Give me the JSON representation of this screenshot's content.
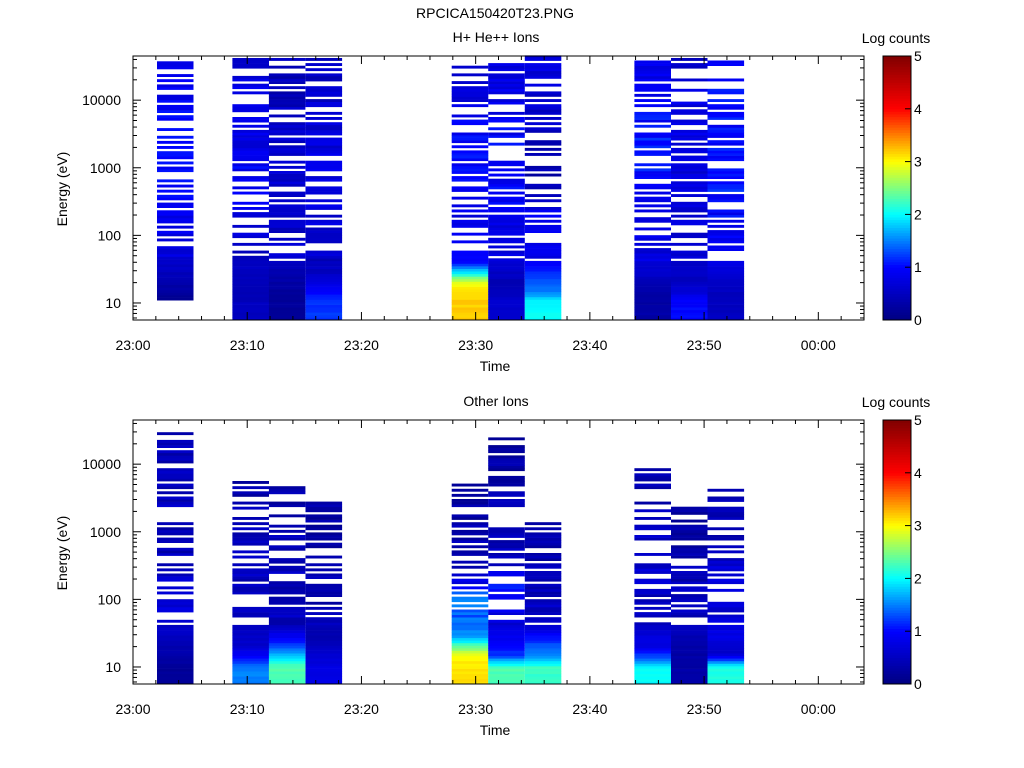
{
  "figure_title": "RPCICA150420T23.PNG",
  "colors": {
    "background": "#ffffff",
    "axis": "#000000",
    "colormap": [
      "#000080",
      "#0000ff",
      "#00ffff",
      "#ffff00",
      "#ff0000",
      "#800000"
    ]
  },
  "chart_data": [
    {
      "type": "heatmap",
      "title": "H+ He++ Ions",
      "xlabel": "Time",
      "ylabel": "Energy (eV)",
      "x_ticks": [
        "23:00",
        "23:10",
        "23:20",
        "23:30",
        "23:40",
        "23:50",
        "00:00"
      ],
      "x_range_minutes": [
        0,
        64
      ],
      "y_scale": "log",
      "y_ticks": [
        10,
        100,
        1000,
        10000
      ],
      "y_tick_labels": [
        "10",
        "100",
        "1000",
        "10000"
      ],
      "y_range": [
        5.6,
        45000
      ],
      "colorbar": {
        "label": "Log counts",
        "range": [
          0,
          5
        ],
        "ticks": [
          "0",
          "1",
          "2",
          "3",
          "4",
          "5"
        ]
      },
      "columns": [
        {
          "t_start": 2.1,
          "t_end": 5.3,
          "e_min": 11,
          "e_max": 42000,
          "bins": [
            [
              10,
              0.2
            ],
            [
              13,
              0.2
            ],
            [
              30,
              0.5
            ],
            [
              60,
              0.7
            ],
            [
              120,
              0.8
            ],
            [
              300,
              0.9
            ],
            [
              800,
              1.0
            ],
            [
              2000,
              0.9
            ],
            [
              5000,
              1.0
            ],
            [
              12000,
              0.9
            ],
            [
              30000,
              0.8
            ]
          ]
        },
        {
          "t_start": 8.7,
          "t_end": 11.9,
          "e_min": 5.6,
          "e_max": 42000,
          "bins": [
            [
              7,
              0.5
            ],
            [
              10,
              0.5
            ],
            [
              14,
              0.4
            ],
            [
              50,
              0.6
            ],
            [
              100,
              0.7
            ],
            [
              300,
              0.8
            ],
            [
              900,
              0.9
            ],
            [
              2500,
              0.8
            ],
            [
              8000,
              0.9
            ],
            [
              20000,
              0.8
            ],
            [
              35000,
              0.6
            ]
          ]
        },
        {
          "t_start": 11.9,
          "t_end": 15.1,
          "e_min": 5.6,
          "e_max": 42000,
          "bins": [
            [
              7,
              0.2
            ],
            [
              10,
              0.2
            ],
            [
              14,
              0.2
            ],
            [
              30,
              0.4
            ],
            [
              60,
              0.6
            ],
            [
              150,
              0.5
            ],
            [
              400,
              0.6
            ],
            [
              1200,
              0.7
            ],
            [
              3500,
              0.6
            ],
            [
              10000,
              0.5
            ],
            [
              30000,
              0.4
            ]
          ]
        },
        {
          "t_start": 15.1,
          "t_end": 18.3,
          "e_min": 5.6,
          "e_max": 42000,
          "bins": [
            [
              7,
              1.2
            ],
            [
              10,
              1.2
            ],
            [
              30,
              0.5
            ],
            [
              80,
              0.6
            ],
            [
              250,
              0.7
            ],
            [
              800,
              0.8
            ],
            [
              2500,
              0.7
            ],
            [
              8000,
              0.6
            ],
            [
              25000,
              0.5
            ]
          ]
        },
        {
          "t_start": 27.9,
          "t_end": 31.1,
          "e_min": 5.6,
          "e_max": 30000,
          "bins": [
            [
              7,
              3.2
            ],
            [
              10,
              3.2
            ],
            [
              15,
              3.1
            ],
            [
              20,
              2.9
            ],
            [
              25,
              2.3
            ],
            [
              40,
              1.0
            ],
            [
              70,
              0.9
            ],
            [
              150,
              0.8
            ],
            [
              500,
              0.9
            ],
            [
              1500,
              1.0
            ],
            [
              5000,
              0.9
            ],
            [
              20000,
              0.7
            ]
          ]
        },
        {
          "t_start": 31.1,
          "t_end": 34.3,
          "e_min": 5.6,
          "e_max": 42000,
          "bins": [
            [
              7,
              0.6
            ],
            [
              10,
              0.6
            ],
            [
              20,
              0.4
            ],
            [
              40,
              0.7
            ],
            [
              120,
              0.8
            ],
            [
              400,
              0.9
            ],
            [
              1200,
              1.0
            ],
            [
              4000,
              0.9
            ],
            [
              12000,
              0.8
            ],
            [
              35000,
              0.7
            ]
          ]
        },
        {
          "t_start": 34.3,
          "t_end": 37.5,
          "e_min": 5.6,
          "e_max": 45000,
          "bins": [
            [
              7,
              2.0
            ],
            [
              10,
              2.0
            ],
            [
              15,
              1.5
            ],
            [
              22,
              1.3
            ],
            [
              30,
              1.1
            ],
            [
              60,
              0.8
            ],
            [
              200,
              0.9
            ],
            [
              700,
              0.3
            ],
            [
              2000,
              0.5
            ],
            [
              6000,
              0.6
            ],
            [
              20000,
              0.7
            ],
            [
              40000,
              0.8
            ]
          ]
        },
        {
          "t_start": 43.9,
          "t_end": 47.1,
          "e_min": 5.6,
          "e_max": 42000,
          "bins": [
            [
              7,
              0.3
            ],
            [
              10,
              0.3
            ],
            [
              14,
              0.3
            ],
            [
              30,
              0.6
            ],
            [
              70,
              0.8
            ],
            [
              200,
              0.9
            ],
            [
              600,
              1.0
            ],
            [
              1800,
              1.1
            ],
            [
              5000,
              1.0
            ],
            [
              15000,
              0.9
            ],
            [
              35000,
              0.8
            ]
          ]
        },
        {
          "t_start": 47.1,
          "t_end": 50.3,
          "e_min": 5.6,
          "e_max": 42000,
          "bins": [
            [
              7,
              1.0
            ],
            [
              10,
              1.0
            ],
            [
              20,
              0.5
            ],
            [
              50,
              0.6
            ],
            [
              150,
              0.7
            ],
            [
              500,
              0.8
            ],
            [
              1500,
              0.7
            ],
            [
              5000,
              0.8
            ],
            [
              15000,
              0.7
            ],
            [
              35000,
              0.6
            ]
          ]
        },
        {
          "t_start": 50.3,
          "t_end": 53.5,
          "e_min": 5.6,
          "e_max": 42000,
          "bins": [
            [
              7,
              0.5
            ],
            [
              10,
              0.5
            ],
            [
              16,
              0.5
            ],
            [
              22,
              0.6
            ],
            [
              30,
              0.7
            ],
            [
              80,
              0.9
            ],
            [
              250,
              1.0
            ],
            [
              800,
              1.1
            ],
            [
              2500,
              1.0
            ],
            [
              8000,
              1.0
            ],
            [
              25000,
              0.9
            ]
          ]
        }
      ]
    },
    {
      "type": "heatmap",
      "title": "Other Ions",
      "xlabel": "Time",
      "ylabel": "Energy (eV)",
      "x_ticks": [
        "23:00",
        "23:10",
        "23:20",
        "23:30",
        "23:40",
        "23:50",
        "00:00"
      ],
      "x_range_minutes": [
        0,
        64
      ],
      "y_scale": "log",
      "y_ticks": [
        10,
        100,
        1000,
        10000
      ],
      "y_tick_labels": [
        "10",
        "100",
        "1000",
        "10000"
      ],
      "y_range": [
        5.6,
        45000
      ],
      "colorbar": {
        "label": "Log counts",
        "range": [
          0,
          5
        ],
        "ticks": [
          "0",
          "1",
          "2",
          "3",
          "4",
          "5"
        ]
      },
      "columns": [
        {
          "t_start": 2.1,
          "t_end": 5.3,
          "e_min": 5.6,
          "e_max": 35000,
          "bins": [
            [
              7,
              0.2
            ],
            [
              10,
              0.2
            ],
            [
              15,
              0.3
            ],
            [
              30,
              0.5
            ],
            [
              60,
              0.6
            ],
            [
              120,
              0.7
            ],
            [
              300,
              0.5
            ],
            [
              800,
              0.4
            ],
            [
              2500,
              0.5
            ],
            [
              6000,
              0.4
            ],
            [
              33000,
              0.5
            ]
          ]
        },
        {
          "t_start": 8.7,
          "t_end": 11.9,
          "e_min": 5.6,
          "e_max": 5500,
          "bins": [
            [
              7,
              1.5
            ],
            [
              10,
              1.5
            ],
            [
              14,
              1.0
            ],
            [
              20,
              0.6
            ],
            [
              40,
              0.5
            ],
            [
              100,
              0.4
            ],
            [
              300,
              0.5
            ],
            [
              900,
              0.4
            ],
            [
              2000,
              0.4
            ],
            [
              5000,
              0.3
            ]
          ]
        },
        {
          "t_start": 11.9,
          "t_end": 15.1,
          "e_min": 5.6,
          "e_max": 4500,
          "bins": [
            [
              7,
              2.3
            ],
            [
              10,
              2.3
            ],
            [
              15,
              1.8
            ],
            [
              20,
              1.3
            ],
            [
              40,
              0.5
            ],
            [
              100,
              0.4
            ],
            [
              300,
              0.5
            ],
            [
              1200,
              0.4
            ],
            [
              4000,
              0.3
            ]
          ]
        },
        {
          "t_start": 15.1,
          "t_end": 18.3,
          "e_min": 5.6,
          "e_max": 3800,
          "bins": [
            [
              7,
              0.8
            ],
            [
              10,
              0.8
            ],
            [
              25,
              0.4
            ],
            [
              80,
              0.4
            ],
            [
              200,
              0.4
            ],
            [
              1100,
              0.3
            ],
            [
              3500,
              0.3
            ]
          ]
        },
        {
          "t_start": 27.9,
          "t_end": 31.1,
          "e_min": 5.6,
          "e_max": 4800,
          "bins": [
            [
              7,
              3.1
            ],
            [
              10,
              3.1
            ],
            [
              15,
              3.0
            ],
            [
              20,
              2.4
            ],
            [
              28,
              1.6
            ],
            [
              45,
              1.4
            ],
            [
              70,
              1.3
            ],
            [
              100,
              1.6
            ],
            [
              150,
              1.0
            ],
            [
              250,
              0.5
            ],
            [
              800,
              0.4
            ],
            [
              1800,
              0.3
            ],
            [
              4500,
              0.3
            ]
          ]
        },
        {
          "t_start": 31.1,
          "t_end": 34.3,
          "e_min": 5.6,
          "e_max": 23000,
          "bins": [
            [
              7,
              2.3
            ],
            [
              10,
              2.3
            ],
            [
              15,
              1.2
            ],
            [
              25,
              0.9
            ],
            [
              45,
              0.7
            ],
            [
              80,
              0.9
            ],
            [
              150,
              1.0
            ],
            [
              300,
              0.6
            ],
            [
              700,
              0.4
            ],
            [
              2500,
              0.4
            ],
            [
              8000,
              0.3
            ],
            [
              22000,
              0.3
            ]
          ]
        },
        {
          "t_start": 34.3,
          "t_end": 37.5,
          "e_min": 5.6,
          "e_max": 1500,
          "bins": [
            [
              7,
              2.2
            ],
            [
              10,
              2.2
            ],
            [
              15,
              1.5
            ],
            [
              22,
              1.3
            ],
            [
              40,
              0.6
            ],
            [
              100,
              0.5
            ],
            [
              300,
              0.4
            ],
            [
              800,
              0.3
            ],
            [
              1400,
              0.3
            ]
          ]
        },
        {
          "t_start": 43.9,
          "t_end": 47.1,
          "e_min": 5.6,
          "e_max": 8500,
          "bins": [
            [
              7,
              2.0
            ],
            [
              10,
              2.0
            ],
            [
              14,
              1.3
            ],
            [
              20,
              0.8
            ],
            [
              40,
              0.6
            ],
            [
              100,
              0.5
            ],
            [
              300,
              0.6
            ],
            [
              900,
              0.5
            ],
            [
              2500,
              0.4
            ],
            [
              8000,
              0.4
            ]
          ]
        },
        {
          "t_start": 47.1,
          "t_end": 50.3,
          "e_min": 5.6,
          "e_max": 2200,
          "bins": [
            [
              7,
              0.3
            ],
            [
              10,
              0.3
            ],
            [
              20,
              0.3
            ],
            [
              40,
              0.5
            ],
            [
              100,
              0.5
            ],
            [
              300,
              0.4
            ],
            [
              800,
              0.3
            ],
            [
              2000,
              0.3
            ]
          ]
        },
        {
          "t_start": 50.3,
          "t_end": 53.5,
          "e_min": 5.6,
          "e_max": 4800,
          "bins": [
            [
              7,
              2.1
            ],
            [
              10,
              2.1
            ],
            [
              16,
              0.5
            ],
            [
              30,
              0.8
            ],
            [
              70,
              0.6
            ],
            [
              200,
              0.7
            ],
            [
              600,
              0.5
            ],
            [
              2000,
              0.4
            ],
            [
              4500,
              0.3
            ]
          ]
        }
      ]
    }
  ]
}
